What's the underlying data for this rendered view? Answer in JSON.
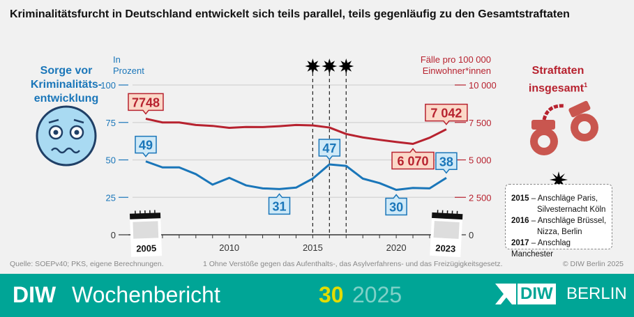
{
  "title": "Kriminalitätsfurcht in Deutschland entwickelt sich teils parallel, teils gegenläufig zu den Gesamtstraftaten",
  "left_heading": [
    "Sorge vor",
    "Kriminalitäts-",
    "entwicklung"
  ],
  "right_heading": [
    "Straftaten",
    "insgesamt",
    "1"
  ],
  "unit_left": [
    "In",
    "Prozent"
  ],
  "unit_right": [
    "Fälle pro 100 000",
    "Einwohner*innen"
  ],
  "events": [
    {
      "year": "2015",
      "dash": "–",
      "text": "Anschläge Paris,",
      "cont": "Silvesternacht Köln"
    },
    {
      "year": "2016",
      "dash": "–",
      "text": "Anschläge Brüssel,",
      "cont": "Nizza, Berlin"
    },
    {
      "year": "2017",
      "dash": "–",
      "text": "Anschlag Manchester",
      "cont": ""
    }
  ],
  "footnotes": {
    "source": "Quelle: SOEPv40; PKS, eigene Berechnungen.",
    "note": "1  Ohne Verstöße gegen das Aufenthalts-, das Asylverfahrens- und das Freizügigkeitsgesetz.",
    "copyright": "© DIW Berlin 2025"
  },
  "footer": {
    "brand": "DIW",
    "publication": "Wochenbericht",
    "issue": "30",
    "year": "2025",
    "logo": "DIW",
    "logo_city": "BERLIN"
  },
  "icons": [
    "worried-face-icon",
    "handcuffs-icon",
    "explosion-icon",
    "calendar-icon"
  ],
  "colors": {
    "fear": "#1a76b9",
    "crime": "#b7222f",
    "footer": "#00a596",
    "issue": "#e2dc00"
  },
  "chart_data": {
    "type": "line",
    "title": "Kriminalitätsfurcht in Deutschland entwickelt sich teils parallel, teils gegenläufig zu den Gesamtstraftaten",
    "x": [
      2005,
      2006,
      2007,
      2008,
      2009,
      2010,
      2011,
      2012,
      2013,
      2014,
      2015,
      2016,
      2017,
      2018,
      2019,
      2020,
      2021,
      2022,
      2023
    ],
    "x_ticks": [
      "2010",
      "2015",
      "2020"
    ],
    "x_end_labels": [
      "2005",
      "2023"
    ],
    "event_years": [
      2015,
      2016,
      2017
    ],
    "y_left": {
      "label": "In Prozent",
      "lim": [
        0,
        100
      ],
      "ticks": [
        "0",
        "25",
        "50",
        "75",
        "100"
      ]
    },
    "y_right": {
      "label": "Fälle pro 100 000 Einwohner*innen",
      "lim": [
        0,
        10000
      ],
      "ticks": [
        "0",
        "2 500",
        "5 000",
        "7 500",
        "10 000"
      ]
    },
    "grid": true,
    "series": [
      {
        "name": "Sorge vor Kriminalitätsentwicklung",
        "axis": "left",
        "values": [
          49,
          45,
          45,
          40.5,
          33.5,
          38,
          33,
          31,
          30.5,
          31.5,
          37.5,
          47,
          46,
          37.5,
          34.5,
          30,
          31.3,
          31,
          38
        ],
        "labels": [
          {
            "year": 2005,
            "text": "49",
            "pos": "above"
          },
          {
            "year": 2013,
            "text": "31",
            "pos": "below"
          },
          {
            "year": 2016,
            "text": "47",
            "pos": "above"
          },
          {
            "year": 2020,
            "text": "30",
            "pos": "below"
          },
          {
            "year": 2023,
            "text": "38",
            "pos": "above"
          }
        ]
      },
      {
        "name": "Straftaten insgesamt",
        "axis": "right",
        "values": [
          7748,
          7500,
          7500,
          7330,
          7270,
          7140,
          7200,
          7190,
          7250,
          7330,
          7300,
          7160,
          6730,
          6500,
          6340,
          6200,
          6070,
          6480,
          7042
        ],
        "labels": [
          {
            "year": 2005,
            "text": "7748",
            "pos": "above"
          },
          {
            "year": 2021,
            "text": "6 070",
            "pos": "below"
          },
          {
            "year": 2023,
            "text": "7 042",
            "pos": "above"
          }
        ]
      }
    ]
  }
}
